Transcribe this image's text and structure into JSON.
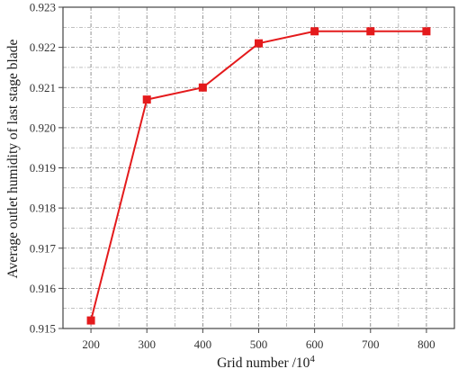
{
  "chart_data": {
    "type": "line",
    "title": "",
    "xlabel": "Grid number /10",
    "xlabel_superscript": "4",
    "ylabel": "Average outlet humidity of last stage blade",
    "x": [
      200,
      300,
      400,
      500,
      600,
      700,
      800
    ],
    "series": [
      {
        "values": [
          0.9152,
          0.9207,
          0.921,
          0.9221,
          0.9224,
          0.9224,
          0.9224
        ]
      }
    ],
    "xlim": [
      150,
      850
    ],
    "ylim": [
      0.915,
      0.923
    ],
    "xticks": [
      "200",
      "300",
      "400",
      "500",
      "600",
      "700",
      "800"
    ],
    "yticks": [
      "0.915",
      "0.916",
      "0.917",
      "0.918",
      "0.919",
      "0.920",
      "0.921",
      "0.922",
      "0.923"
    ],
    "grid": true,
    "line_color": "#e41a1c",
    "marker": "square"
  }
}
